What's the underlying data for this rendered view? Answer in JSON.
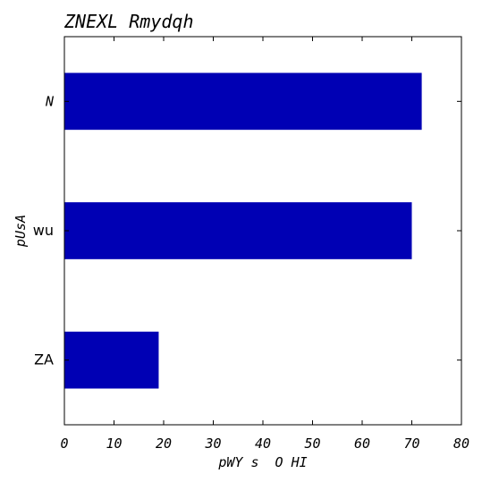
{
  "chart_data": {
    "type": "bar",
    "orientation": "horizontal",
    "title": "ZNEXL Rmydqh",
    "xlabel": "pWY s  O HI",
    "ylabel": "pUsA",
    "categories": [
      "ZA",
      "wu",
      "N"
    ],
    "values": [
      19,
      70,
      72
    ],
    "xlim": [
      0,
      80
    ],
    "xticks": [
      0,
      10,
      20,
      30,
      40,
      50,
      60,
      70,
      80
    ],
    "bar_color": "#0000b4",
    "grid": false,
    "legend": "none"
  }
}
